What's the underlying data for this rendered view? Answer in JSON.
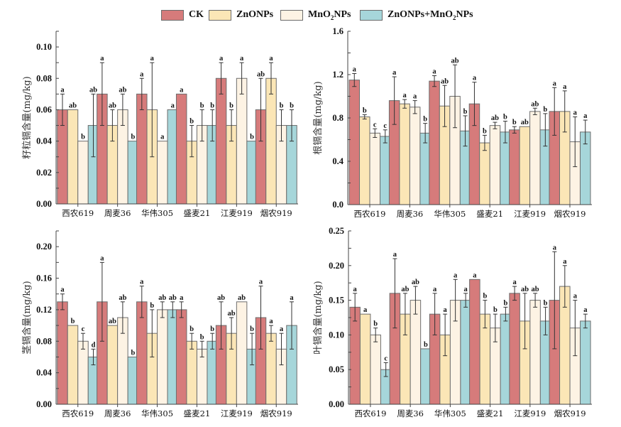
{
  "legend": [
    {
      "key": "CK",
      "label": "CK",
      "color": "#D67B7B"
    },
    {
      "key": "ZnONPs",
      "label": "ZnONPs",
      "color": "#FBE6B6"
    },
    {
      "key": "MnO2NPs",
      "label_main": "MnO",
      "label_sub": "2",
      "label_tail": "NPs",
      "color": "#FDF3E4"
    },
    {
      "key": "ZnONPs+MnO2NPs",
      "label_main": "ZnONPs+MnO",
      "label_sub": "2",
      "label_tail": "NPs",
      "color": "#A6D6DA"
    }
  ],
  "chart_data": [
    {
      "type": "bar",
      "position": "top-left",
      "ylabel": "籽粒镉含量(mg/kg)",
      "xlabel": "",
      "ylim": [
        0,
        0.11
      ],
      "yticks": [
        "0.00",
        "0.02",
        "0.04",
        "0.06",
        "0.08",
        "0.10"
      ],
      "ytick_values": [
        0,
        0.02,
        0.04,
        0.06,
        0.08,
        0.1
      ],
      "categories": [
        "西农619",
        "周麦36",
        "华伟305",
        "盛麦21",
        "江麦919",
        "烟农919"
      ],
      "series": [
        {
          "name": "CK",
          "values": [
            0.06,
            0.07,
            0.07,
            0.07,
            0.08,
            0.06
          ],
          "errors": [
            0.01,
            0.02,
            0.01,
            0,
            0.01,
            0.02
          ],
          "letters": [
            "a",
            "a",
            "a",
            "a",
            "a",
            "ab"
          ]
        },
        {
          "name": "ZnONPs",
          "values": [
            0.06,
            0.05,
            0.06,
            0.04,
            0.05,
            0.08
          ],
          "errors": [
            0,
            0.01,
            0.03,
            0.01,
            0.01,
            0.01
          ],
          "letters": [
            "ab",
            "ab",
            "a",
            "b",
            "b",
            "a"
          ]
        },
        {
          "name": "MnO2NPs",
          "values": [
            0.04,
            0.06,
            0.04,
            0.05,
            0.08,
            0.05
          ],
          "errors": [
            0,
            0.01,
            0,
            0.01,
            0.01,
            0.01
          ],
          "letters": [
            "b",
            "ab",
            "a",
            "b",
            "a",
            "b"
          ]
        },
        {
          "name": "ZnONPs+MnO2NPs",
          "values": [
            0.05,
            0.04,
            0.06,
            0.05,
            0.04,
            0.05
          ],
          "errors": [
            0.02,
            0,
            0,
            0.01,
            0,
            0.01
          ],
          "letters": [
            "ab",
            "b",
            "a",
            "b",
            "b",
            "b"
          ]
        }
      ]
    },
    {
      "type": "bar",
      "position": "top-right",
      "ylabel": "根镉含量(mg/kg)",
      "xlabel": "",
      "ylim": [
        0,
        1.6
      ],
      "yticks": [
        "0.0",
        "0.4",
        "0.8",
        "1.2",
        "1.6"
      ],
      "ytick_values": [
        0,
        0.4,
        0.8,
        1.2,
        1.6
      ],
      "categories": [
        "西农619",
        "周麦36",
        "华伟305",
        "盛麦21",
        "江麦919",
        "烟农919"
      ],
      "series": [
        {
          "name": "CK",
          "values": [
            1.15,
            0.96,
            1.14,
            0.93,
            0.69,
            0.86
          ],
          "errors": [
            0.06,
            0.22,
            0.05,
            0.2,
            0.03,
            0.22
          ],
          "letters": [
            "a",
            "a",
            "a",
            "a",
            "b",
            "a"
          ]
        },
        {
          "name": "ZnONPs",
          "values": [
            0.81,
            0.93,
            0.91,
            0.57,
            0.72,
            0.86
          ],
          "errors": [
            0.02,
            0.04,
            0.19,
            0.07,
            0,
            0.19
          ],
          "letters": [
            "b",
            "a",
            "ab",
            "b",
            "ab",
            "a"
          ]
        },
        {
          "name": "MnO2NPs",
          "values": [
            0.66,
            0.9,
            1.0,
            0.73,
            0.86,
            0.58
          ],
          "errors": [
            0.04,
            0.06,
            0.29,
            0.03,
            0.03,
            0.23
          ],
          "letters": [
            "c",
            "a",
            "ab",
            "ab",
            "ab",
            "a"
          ]
        },
        {
          "name": "ZnONPs+MnO2NPs",
          "values": [
            0.63,
            0.66,
            0.68,
            0.67,
            0.69,
            0.67
          ],
          "errors": [
            0.06,
            0.09,
            0.14,
            0.1,
            0.15,
            0.11
          ],
          "letters": [
            "c",
            "b",
            "b",
            "b",
            "b",
            "a"
          ]
        }
      ]
    },
    {
      "type": "bar",
      "position": "bottom-left",
      "ylabel": "茎镉含量(mg/kg)",
      "xlabel": "",
      "ylim": [
        0,
        0.22
      ],
      "yticks": [
        "0.00",
        "0.04",
        "0.08",
        "0.12",
        "0.16",
        "0.20"
      ],
      "ytick_values": [
        0,
        0.04,
        0.08,
        0.12,
        0.16,
        0.2
      ],
      "categories": [
        "西农619",
        "周麦36",
        "华伟305",
        "盛麦21",
        "江麦919",
        "烟农919"
      ],
      "series": [
        {
          "name": "CK",
          "values": [
            0.13,
            0.13,
            0.13,
            0.12,
            0.1,
            0.11
          ],
          "errors": [
            0.01,
            0.05,
            0.02,
            0.01,
            0.03,
            0.04
          ],
          "letters": [
            "a",
            "a",
            "a",
            "a",
            "ab",
            "a"
          ]
        },
        {
          "name": "ZnONPs",
          "values": [
            0.1,
            0.1,
            0.09,
            0.08,
            0.09,
            0.09
          ],
          "errors": [
            0,
            0,
            0.03,
            0.01,
            0.02,
            0.01
          ],
          "letters": [
            "b",
            "ab",
            "b",
            "b",
            "ab",
            "a"
          ]
        },
        {
          "name": "MnO2NPs",
          "values": [
            0.08,
            0.11,
            0.12,
            0.07,
            0.13,
            0.07
          ],
          "errors": [
            0.01,
            0.02,
            0.01,
            0.01,
            0,
            0.02
          ],
          "letters": [
            "c",
            "ab",
            "ab",
            "b",
            "ab",
            "a"
          ]
        },
        {
          "name": "ZnONPs+MnO2NPs",
          "values": [
            0.06,
            0.06,
            0.12,
            0.08,
            0.07,
            0.1
          ],
          "errors": [
            0.01,
            0,
            0.01,
            0.01,
            0.02,
            0.03
          ],
          "letters": [
            "d",
            "b",
            "ab",
            "b",
            "b",
            "a"
          ]
        }
      ]
    },
    {
      "type": "bar",
      "position": "bottom-right",
      "ylabel": "叶镉含量(mg/kg)",
      "xlabel": "",
      "ylim": [
        0,
        0.25
      ],
      "yticks": [
        "0.00",
        "0.05",
        "0.10",
        "0.15",
        "0.20",
        "0.25"
      ],
      "ytick_values": [
        0,
        0.05,
        0.1,
        0.15,
        0.2,
        0.25
      ],
      "categories": [
        "西农619",
        "周麦36",
        "华伟305",
        "盛麦21",
        "江麦919",
        "烟农919"
      ],
      "series": [
        {
          "name": "CK",
          "values": [
            0.14,
            0.16,
            0.13,
            0.18,
            0.16,
            0.15
          ],
          "errors": [
            0.02,
            0.05,
            0.03,
            0,
            0.01,
            0.07
          ],
          "letters": [
            "a",
            "a",
            "a",
            "a",
            "a",
            "a"
          ]
        },
        {
          "name": "ZnONPs",
          "values": [
            0.13,
            0.13,
            0.1,
            0.13,
            0.12,
            0.17
          ],
          "errors": [
            0,
            0.03,
            0.03,
            0.02,
            0.04,
            0.03
          ],
          "letters": [
            "a",
            "ab",
            "a",
            "b",
            "ab",
            "a"
          ]
        },
        {
          "name": "MnO2NPs",
          "values": [
            0.1,
            0.15,
            0.15,
            0.11,
            0.15,
            0.11
          ],
          "errors": [
            0.01,
            0.02,
            0.03,
            0.02,
            0.01,
            0.04
          ],
          "letters": [
            "b",
            "ab",
            "a",
            "b",
            "ab",
            "a"
          ]
        },
        {
          "name": "ZnONPs+MnO2NPs",
          "values": [
            0.05,
            0.08,
            0.15,
            0.13,
            0.12,
            0.12
          ],
          "errors": [
            0.01,
            0,
            0.01,
            0.01,
            0.02,
            0.01
          ],
          "letters": [
            "c",
            "b",
            "a",
            "b",
            "b",
            "a"
          ]
        }
      ]
    }
  ]
}
